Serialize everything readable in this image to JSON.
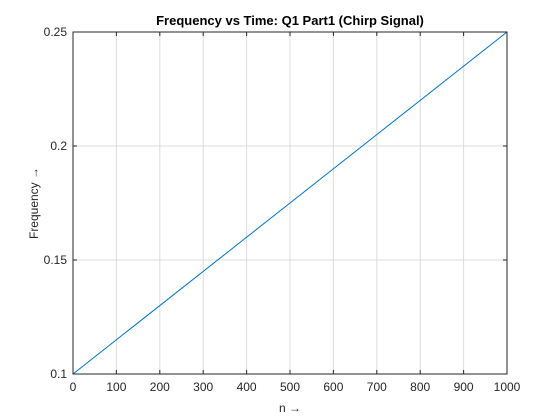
{
  "chart_data": {
    "type": "line",
    "title": "Frequency vs Time: Q1 Part1 (Chirp Signal)",
    "xlabel": "n →",
    "ylabel": "Frequency →",
    "xlim": [
      0,
      1000
    ],
    "ylim": [
      0.1,
      0.25
    ],
    "xticks": [
      0,
      100,
      200,
      300,
      400,
      500,
      600,
      700,
      800,
      900,
      1000
    ],
    "xtick_labels": [
      "0",
      "100",
      "200",
      "300",
      "400",
      "500",
      "600",
      "700",
      "800",
      "900",
      "1000"
    ],
    "yticks": [
      0.1,
      0.15,
      0.2,
      0.25
    ],
    "ytick_labels": [
      "0.1",
      "0.15",
      "0.2",
      "0.25"
    ],
    "grid": true,
    "series": [
      {
        "color": "#0072bd",
        "x": [
          0,
          1000
        ],
        "y": [
          0.1,
          0.25
        ]
      }
    ]
  }
}
